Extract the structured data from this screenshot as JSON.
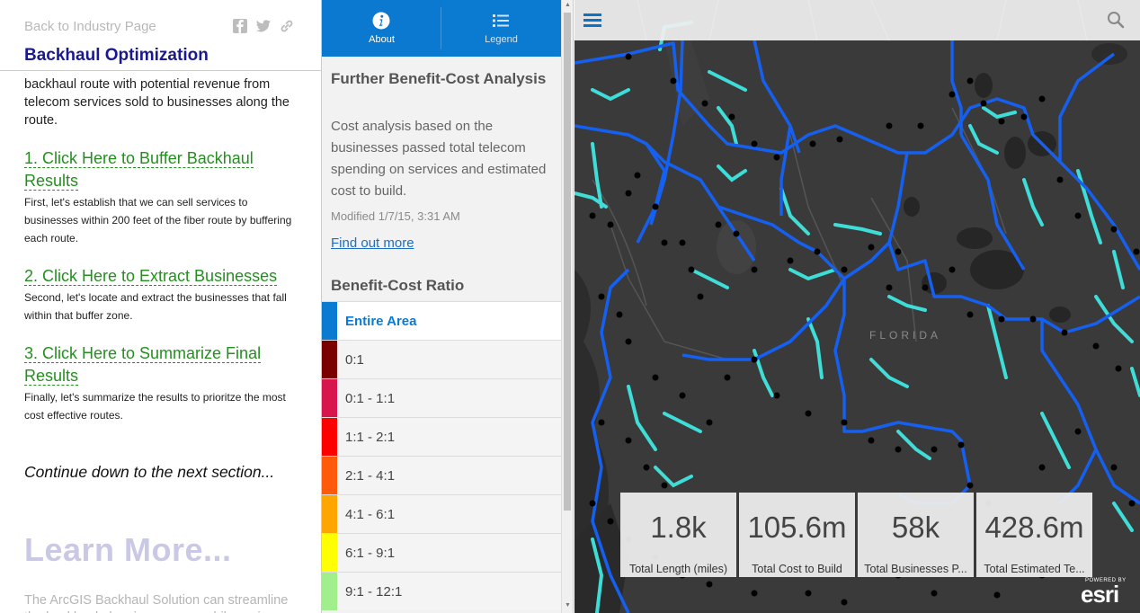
{
  "story": {
    "back_link": "Back to Industry Page",
    "title": "Backhaul Optimization",
    "intro_text": "backhaul route with potential revenue from telecom services sold to businesses along the route.",
    "steps": [
      {
        "link": "1. Click Here to Buffer Backhaul Results",
        "desc": "First, let's establish that we can sell services to businesses within 200 feet of the fiber route by buffering each route."
      },
      {
        "link": "2. Click Here to Extract Businesses",
        "desc": "Second, let's locate and extract the businesses that fall within that buffer zone."
      },
      {
        "link": "3. Click Here to Summarize Final Results",
        "desc": "Finally, let's summarize the results to prioritze the most cost effective routes."
      }
    ],
    "continue_text": "Continue down to the next section...",
    "learn_more": "Learn More...",
    "fade_text": "The ArcGIS Backhaul Solution can streamline the backhaul planning process while saving",
    "share_icons": [
      "facebook-icon",
      "twitter-icon",
      "link-icon"
    ]
  },
  "side_panel": {
    "tabs": [
      {
        "label": "About",
        "icon": "info-icon"
      },
      {
        "label": "Legend",
        "icon": "list-icon"
      }
    ],
    "title": "Further Benefit-Cost Analysis",
    "description": "Cost analysis based on the businesses passed total telecom spending on services and estimated cost to build.",
    "modified": "Modified 1/7/15, 3:31 AM",
    "find_out_more": "Find out more",
    "section_title": "Benefit-Cost Ratio",
    "legend": [
      {
        "label": "Entire Area",
        "color": "#0b7ad1"
      },
      {
        "label": "0:1",
        "color": "#7a0000"
      },
      {
        "label": "0:1 - 1:1",
        "color": "#d6164d"
      },
      {
        "label": "1:1 - 2:1",
        "color": "#ff0000"
      },
      {
        "label": "2:1 - 4:1",
        "color": "#ff5a0a"
      },
      {
        "label": "4:1 - 6:1",
        "color": "#ffa500"
      },
      {
        "label": "6:1 - 9:1",
        "color": "#ffff00"
      },
      {
        "label": "9:1 - 12:1",
        "color": "#a0ee8c"
      }
    ]
  },
  "map": {
    "region_label": "FLORIDA",
    "stats": [
      {
        "value": "1.8k",
        "label": "Total Length (miles)"
      },
      {
        "value": "105.6m",
        "label": "Total Cost to Build"
      },
      {
        "value": "58k",
        "label": "Total Businesses P..."
      },
      {
        "value": "428.6m",
        "label": "Total Estimated Te..."
      }
    ],
    "attribution_powered": "POWERED BY",
    "attribution_brand": "esri",
    "colors": {
      "route": "#1560f0",
      "buffer": "#40e6e0",
      "business": "#000000",
      "land": "#3a3a3a",
      "water": "#2a2a2a"
    }
  }
}
